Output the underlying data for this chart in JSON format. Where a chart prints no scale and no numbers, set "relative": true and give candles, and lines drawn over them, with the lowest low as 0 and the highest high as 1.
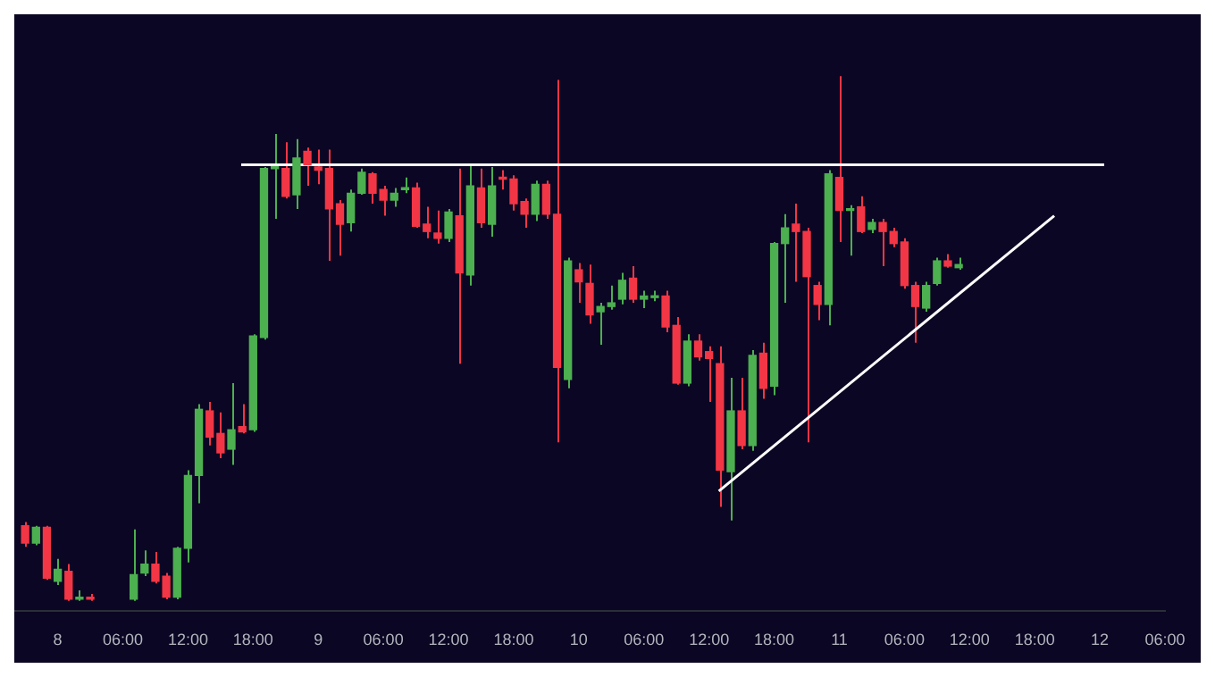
{
  "chart_data": {
    "type": "candlestick",
    "relative": true,
    "tick_labels": "x",
    "xlim": [
      "--01-07T20:00",
      "--01-12T06:00"
    ],
    "xticks": [
      {
        "value": "--01-08T00:00",
        "label": "8"
      },
      {
        "value": "--01-08T06:00",
        "label": "06:00"
      },
      {
        "value": "--01-08T12:00",
        "label": "12:00"
      },
      {
        "value": "--01-08T18:00",
        "label": "18:00"
      },
      {
        "value": "--01-09T00:00",
        "label": "9"
      },
      {
        "value": "--01-09T06:00",
        "label": "06:00"
      },
      {
        "value": "--01-09T12:00",
        "label": "12:00"
      },
      {
        "value": "--01-09T18:00",
        "label": "18:00"
      },
      {
        "value": "--01-10T00:00",
        "label": "10"
      },
      {
        "value": "--01-10T06:00",
        "label": "06:00"
      },
      {
        "value": "--01-10T12:00",
        "label": "12:00"
      },
      {
        "value": "--01-10T18:00",
        "label": "18:00"
      },
      {
        "value": "--01-11T00:00",
        "label": "11"
      },
      {
        "value": "--01-11T06:00",
        "label": "06:00"
      },
      {
        "value": "--01-11T12:00",
        "label": "12:00"
      },
      {
        "value": "--01-11T18:00",
        "label": "18:00"
      },
      {
        "value": "--01-12T00:00",
        "label": "12"
      },
      {
        "value": "--01-12T06:00",
        "label": "06:00"
      }
    ],
    "x": [
      "--01-07T21:00",
      "--01-07T22:00",
      "--01-07T23:00",
      "--01-08T00:00",
      "--01-08T01:00",
      "--01-08T02:00",
      "--01-08T03:00",
      "--01-08T07:00",
      "--01-08T08:00",
      "--01-08T09:00",
      "--01-08T10:00",
      "--01-08T11:00",
      "--01-08T12:00",
      "--01-08T13:00",
      "--01-08T14:00",
      "--01-08T15:00",
      "--01-08T16:00",
      "--01-08T17:00",
      "--01-08T18:00",
      "--01-08T19:00",
      "--01-08T20:00",
      "--01-08T21:00",
      "--01-08T22:00",
      "--01-08T23:00",
      "--01-09T00:00",
      "--01-09T01:00",
      "--01-09T02:00",
      "--01-09T03:00",
      "--01-09T04:00",
      "--01-09T05:00",
      "--01-09T06:00",
      "--01-09T07:00",
      "--01-09T08:00",
      "--01-09T09:00",
      "--01-09T10:00",
      "--01-09T11:00",
      "--01-09T12:00",
      "--01-09T13:00",
      "--01-09T14:00",
      "--01-09T15:00",
      "--01-09T16:00",
      "--01-09T17:00",
      "--01-09T18:00",
      "--01-09T19:00",
      "--01-09T20:00",
      "--01-09T21:00",
      "--01-09T22:00",
      "--01-09T23:00",
      "--01-10T00:00",
      "--01-10T01:00",
      "--01-10T02:00",
      "--01-10T03:00",
      "--01-10T04:00",
      "--01-10T05:00",
      "--01-10T06:00",
      "--01-10T07:00",
      "--01-10T08:00",
      "--01-10T09:00",
      "--01-10T10:00",
      "--01-10T11:00",
      "--01-10T12:00",
      "--01-10T13:00",
      "--01-10T14:00",
      "--01-10T15:00",
      "--01-10T16:00",
      "--01-10T17:00",
      "--01-10T18:00",
      "--01-10T19:00",
      "--01-10T20:00",
      "--01-10T21:00",
      "--01-10T22:00",
      "--01-10T23:00",
      "--01-11T00:00",
      "--01-11T01:00",
      "--01-11T02:00",
      "--01-11T03:00",
      "--01-11T04:00",
      "--01-11T05:00",
      "--01-11T06:00",
      "--01-11T07:00",
      "--01-11T08:00",
      "--01-11T09:00",
      "--01-11T10:00",
      "--01-11T11:00"
    ],
    "ohlc": [
      [
        0.143,
        0.15,
        0.103,
        0.11
      ],
      [
        0.11,
        0.143,
        0.106,
        0.14
      ],
      [
        0.14,
        0.143,
        0.04,
        0.043
      ],
      [
        0.037,
        0.08,
        0.03,
        0.06
      ],
      [
        0.056,
        0.07,
        0,
        0.003
      ],
      [
        0.003,
        0.02,
        0,
        0.007
      ],
      [
        0.007,
        0.013,
        0,
        0.003
      ],
      [
        0.003,
        0.136,
        0,
        0.05
      ],
      [
        0.053,
        0.096,
        0.047,
        0.07
      ],
      [
        0.07,
        0.093,
        0.033,
        0.037
      ],
      [
        0.047,
        0.053,
        0.003,
        0.007
      ],
      [
        0.007,
        0.103,
        0.003,
        0.1
      ],
      [
        0.1,
        0.249,
        0.073,
        0.239
      ],
      [
        0.239,
        0.375,
        0.186,
        0.365
      ],
      [
        0.362,
        0.379,
        0.296,
        0.312
      ],
      [
        0.319,
        0.359,
        0.272,
        0.282
      ],
      [
        0.289,
        0.415,
        0.259,
        0.326
      ],
      [
        0.332,
        0.375,
        0.319,
        0.322
      ],
      [
        0.326,
        0.508,
        0.322,
        0.505
      ],
      [
        0.502,
        0.827,
        0.498,
        0.824
      ],
      [
        0.824,
        0.89,
        0.728,
        0.827
      ],
      [
        0.824,
        0.874,
        0.767,
        0.771
      ],
      [
        0.774,
        0.88,
        0.747,
        0.844
      ],
      [
        0.857,
        0.864,
        0.791,
        0.831
      ],
      [
        0.827,
        0.86,
        0.794,
        0.821
      ],
      [
        0.824,
        0.86,
        0.648,
        0.747
      ],
      [
        0.757,
        0.764,
        0.658,
        0.718
      ],
      [
        0.721,
        0.784,
        0.704,
        0.777
      ],
      [
        0.777,
        0.824,
        0.774,
        0.817
      ],
      [
        0.814,
        0.817,
        0.757,
        0.777
      ],
      [
        0.784,
        0.791,
        0.734,
        0.764
      ],
      [
        0.764,
        0.787,
        0.751,
        0.777
      ],
      [
        0.784,
        0.807,
        0.777,
        0.787
      ],
      [
        0.787,
        0.797,
        0.711,
        0.714
      ],
      [
        0.718,
        0.751,
        0.691,
        0.704
      ],
      [
        0.701,
        0.744,
        0.681,
        0.691
      ],
      [
        0.691,
        0.747,
        0.684,
        0.741
      ],
      [
        0.734,
        0.824,
        0.452,
        0.625
      ],
      [
        0.621,
        0.831,
        0.601,
        0.791
      ],
      [
        0.787,
        0.824,
        0.711,
        0.721
      ],
      [
        0.718,
        0.827,
        0.694,
        0.791
      ],
      [
        0.807,
        0.821,
        0.784,
        0.804
      ],
      [
        0.804,
        0.811,
        0.744,
        0.757
      ],
      [
        0.761,
        0.767,
        0.711,
        0.737
      ],
      [
        0.737,
        0.801,
        0.724,
        0.794
      ],
      [
        0.794,
        0.801,
        0.728,
        0.737
      ],
      [
        0.737,
        0.993,
        0.302,
        0.445
      ],
      [
        0.422,
        0.654,
        0.405,
        0.648
      ],
      [
        0.631,
        0.644,
        0.568,
        0.608
      ],
      [
        0.605,
        0.641,
        0.528,
        0.545
      ],
      [
        0.551,
        0.568,
        0.488,
        0.561
      ],
      [
        0.561,
        0.601,
        0.555,
        0.568
      ],
      [
        0.575,
        0.625,
        0.565,
        0.611
      ],
      [
        0.615,
        0.638,
        0.568,
        0.575
      ],
      [
        0.575,
        0.591,
        0.558,
        0.581
      ],
      [
        0.578,
        0.591,
        0.571,
        0.581
      ],
      [
        0.581,
        0.591,
        0.512,
        0.522
      ],
      [
        0.525,
        0.541,
        0.412,
        0.415
      ],
      [
        0.415,
        0.508,
        0.409,
        0.495
      ],
      [
        0.495,
        0.508,
        0.458,
        0.465
      ],
      [
        0.475,
        0.485,
        0.379,
        0.462
      ],
      [
        0.452,
        0.485,
        0.179,
        0.249
      ],
      [
        0.246,
        0.425,
        0.153,
        0.362
      ],
      [
        0.362,
        0.425,
        0.289,
        0.296
      ],
      [
        0.296,
        0.478,
        0.286,
        0.468
      ],
      [
        0.472,
        0.492,
        0.385,
        0.405
      ],
      [
        0.409,
        0.684,
        0.392,
        0.681
      ],
      [
        0.681,
        0.737,
        0.568,
        0.711
      ],
      [
        0.718,
        0.757,
        0.608,
        0.704
      ],
      [
        0.704,
        0.711,
        0.302,
        0.618
      ],
      [
        0.601,
        0.608,
        0.535,
        0.565
      ],
      [
        0.565,
        0.821,
        0.525,
        0.814
      ],
      [
        0.807,
        1,
        0.684,
        0.744
      ],
      [
        0.744,
        0.754,
        0.658,
        0.747
      ],
      [
        0.751,
        0.771,
        0.701,
        0.704
      ],
      [
        0.708,
        0.728,
        0.701,
        0.721
      ],
      [
        0.721,
        0.728,
        0.638,
        0.704
      ],
      [
        0.704,
        0.711,
        0.674,
        0.681
      ],
      [
        0.684,
        0.691,
        0.595,
        0.601
      ],
      [
        0.601,
        0.608,
        0.492,
        0.561
      ],
      [
        0.558,
        0.608,
        0.551,
        0.601
      ],
      [
        0.605,
        0.654,
        0.601,
        0.648
      ],
      [
        0.648,
        0.661,
        0.635,
        0.638
      ],
      [
        0.635,
        0.654,
        0.631,
        0.641
      ]
    ],
    "series": [
      {
        "type": "line",
        "color": "#ffffff",
        "x": [
          "--01-08T16:54",
          "--01-12T00:24"
        ],
        "values": [
          0.831,
          0.831
        ]
      },
      {
        "type": "line",
        "color": "#ffffff",
        "x": [
          "--01-10T12:54",
          "--01-11T19:48"
        ],
        "values": [
          0.209,
          0.734
        ]
      }
    ]
  }
}
